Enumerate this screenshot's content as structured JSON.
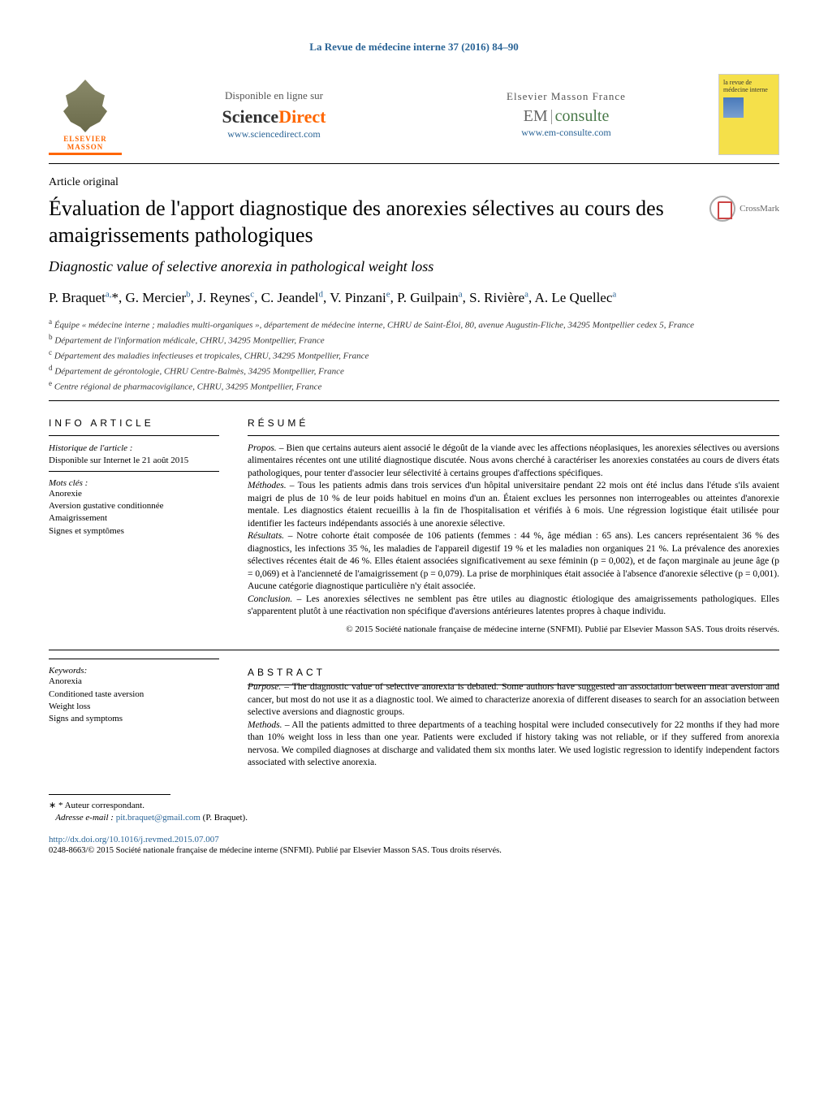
{
  "journal_ref": "La Revue de médecine interne 37 (2016) 84–90",
  "publisher": {
    "name_line1": "ELSEVIER",
    "name_line2": "MASSON"
  },
  "online": {
    "label": "Disponible en ligne sur",
    "brand_pre": "Science",
    "brand_post": "Direct",
    "url": "www.sciencedirect.com"
  },
  "emconsulte": {
    "label": "Elsevier Masson France",
    "brand_pre": "EM",
    "brand_post": "consulte",
    "url": "www.em-consulte.com"
  },
  "journal_cover_title": "la revue de médecine interne",
  "article_type": "Article original",
  "title": "Évaluation de l'apport diagnostique des anorexies sélectives au cours des amaigrissements pathologiques",
  "subtitle": "Diagnostic value of selective anorexia in pathological weight loss",
  "crossmark_label": "CrossMark",
  "authors_html": "P. Braquet<sup>a,</sup>*, G. Mercier<sup>b</sup>, J. Reynes<sup>c</sup>, C. Jeandel<sup>d</sup>, V. Pinzani<sup>e</sup>, P. Guilpain<sup>a</sup>, S. Rivière<sup>a</sup>, A. Le Quellec<sup>a</sup>",
  "affiliations": [
    {
      "sup": "a",
      "text": "Équipe « médecine interne ; maladies multi-organiques », département de médecine interne, CHRU de Saint-Éloi, 80, avenue Augustin-Fliche, 34295 Montpellier cedex 5, France"
    },
    {
      "sup": "b",
      "text": "Département de l'information médicale, CHRU, 34295 Montpellier, France"
    },
    {
      "sup": "c",
      "text": "Département des maladies infectieuses et tropicales, CHRU, 34295 Montpellier, France"
    },
    {
      "sup": "d",
      "text": "Département de gérontologie, CHRU Centre-Balmès, 34295 Montpellier, France"
    },
    {
      "sup": "e",
      "text": "Centre régional de pharmacovigilance, CHRU, 34295 Montpellier, France"
    }
  ],
  "info_article": {
    "heading": "INFO ARTICLE",
    "history_label": "Historique de l'article :",
    "history_value": "Disponible sur Internet le 21 août 2015",
    "keywords_fr_label": "Mots clés :",
    "keywords_fr": [
      "Anorexie",
      "Aversion gustative conditionnée",
      "Amaigrissement",
      "Signes et symptômes"
    ],
    "keywords_en_label": "Keywords:",
    "keywords_en": [
      "Anorexia",
      "Conditioned taste aversion",
      "Weight loss",
      "Signs and symptoms"
    ]
  },
  "resume": {
    "heading": "RÉSUMÉ",
    "paragraphs": [
      {
        "head": "Propos. –",
        "body": "Bien que certains auteurs aient associé le dégoût de la viande avec les affections néoplasiques, les anorexies sélectives ou aversions alimentaires récentes ont une utilité diagnostique discutée. Nous avons cherché à caractériser les anorexies constatées au cours de divers états pathologiques, pour tenter d'associer leur sélectivité à certains groupes d'affections spécifiques."
      },
      {
        "head": "Méthodes. –",
        "body": "Tous les patients admis dans trois services d'un hôpital universitaire pendant 22 mois ont été inclus dans l'étude s'ils avaient maigri de plus de 10 % de leur poids habituel en moins d'un an. Étaient exclues les personnes non interrogeables ou atteintes d'anorexie mentale. Les diagnostics étaient recueillis à la fin de l'hospitalisation et vérifiés à 6 mois. Une régression logistique était utilisée pour identifier les facteurs indépendants associés à une anorexie sélective."
      },
      {
        "head": "Résultats. –",
        "body": "Notre cohorte était composée de 106 patients (femmes : 44 %, âge médian : 65 ans). Les cancers représentaient 36 % des diagnostics, les infections 35 %, les maladies de l'appareil digestif 19 % et les maladies non organiques 21 %. La prévalence des anorexies sélectives récentes était de 46 %. Elles étaient associées significativement au sexe féminin (p = 0,002), et de façon marginale au jeune âge (p = 0,069) et à l'ancienneté de l'amaigrissement (p = 0,079). La prise de morphiniques était associée à l'absence d'anorexie sélective (p = 0,001). Aucune catégorie diagnostique particulière n'y était associée."
      },
      {
        "head": "Conclusion. –",
        "body": "Les anorexies sélectives ne semblent pas être utiles au diagnostic étiologique des amaigrissements pathologiques. Elles s'apparentent plutôt à une réactivation non spécifique d'aversions antérieures latentes propres à chaque individu."
      }
    ],
    "copyright": "© 2015 Société nationale française de médecine interne (SNFMI). Publié par Elsevier Masson SAS. Tous droits réservés."
  },
  "abstract": {
    "heading": "ABSTRACT",
    "paragraphs": [
      {
        "head": "Purpose. –",
        "body": "The diagnostic value of selective anorexia is debated. Some authors have suggested an association between meat aversion and cancer, but most do not use it as a diagnostic tool. We aimed to characterize anorexia of different diseases to search for an association between selective aversions and diagnostic groups."
      },
      {
        "head": "Methods. –",
        "body": "All the patients admitted to three departments of a teaching hospital were included consecutively for 22 months if they had more than 10% weight loss in less than one year. Patients were excluded if history taking was not reliable, or if they suffered from anorexia nervosa. We compiled diagnoses at discharge and validated them six months later. We used logistic regression to identify independent factors associated with selective anorexia."
      }
    ]
  },
  "footer": {
    "correspondent_label": "* Auteur correspondant.",
    "email_label": "Adresse e-mail :",
    "email": "pit.braquet@gmail.com",
    "email_person": "(P. Braquet).",
    "doi": "http://dx.doi.org/10.1016/j.revmed.2015.07.007",
    "copyright": "0248-8663/© 2015 Société nationale française de médecine interne (SNFMI). Publié par Elsevier Masson SAS. Tous droits réservés."
  },
  "colors": {
    "link": "#2a6496",
    "orange": "#ff6600",
    "cover_bg": "#f5e04a"
  }
}
